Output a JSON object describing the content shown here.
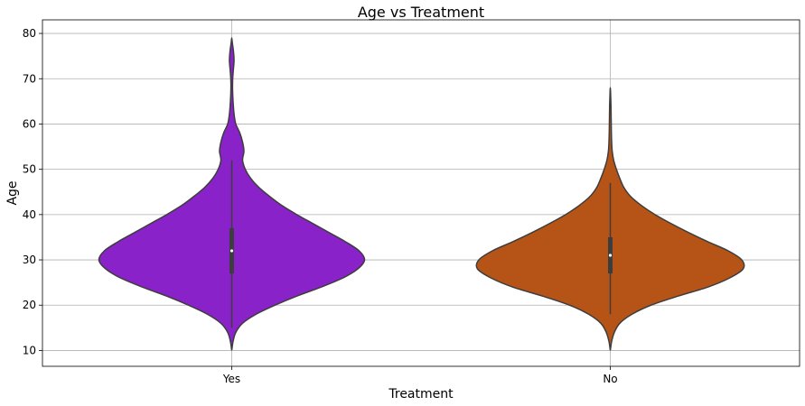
{
  "chart_data": {
    "type": "violin",
    "title": "Age vs Treatment",
    "xlabel": "Treatment",
    "ylabel": "Age",
    "categories": [
      "Yes",
      "No"
    ],
    "ylim": [
      6.5,
      83
    ],
    "yticks": [
      10,
      20,
      30,
      40,
      50,
      60,
      70,
      80
    ],
    "grid": true,
    "colors": [
      "#8a22c9",
      "#b65418"
    ],
    "box_color": "#3d3d3d",
    "violins": [
      {
        "category": "Yes",
        "min": 10,
        "max": 79,
        "q1": 27,
        "median": 32,
        "q3": 37,
        "whisker_low": 15,
        "whisker_high": 52,
        "profile": [
          [
            10,
            0.0
          ],
          [
            12,
            0.01
          ],
          [
            14,
            0.03
          ],
          [
            16,
            0.08
          ],
          [
            18,
            0.18
          ],
          [
            20,
            0.32
          ],
          [
            22,
            0.48
          ],
          [
            24,
            0.66
          ],
          [
            26,
            0.82
          ],
          [
            28,
            0.93
          ],
          [
            30,
            0.98
          ],
          [
            32,
            0.94
          ],
          [
            34,
            0.84
          ],
          [
            36,
            0.72
          ],
          [
            38,
            0.6
          ],
          [
            40,
            0.48
          ],
          [
            42,
            0.37
          ],
          [
            44,
            0.28
          ],
          [
            46,
            0.2
          ],
          [
            48,
            0.14
          ],
          [
            50,
            0.1
          ],
          [
            52,
            0.08
          ],
          [
            54,
            0.09
          ],
          [
            56,
            0.08
          ],
          [
            58,
            0.06
          ],
          [
            60,
            0.03
          ],
          [
            62,
            0.018
          ],
          [
            64,
            0.012
          ],
          [
            66,
            0.008
          ],
          [
            68,
            0.006
          ],
          [
            70,
            0.007
          ],
          [
            72,
            0.012
          ],
          [
            74,
            0.017
          ],
          [
            76,
            0.013
          ],
          [
            78,
            0.004
          ],
          [
            79,
            0.0
          ]
        ]
      },
      {
        "category": "No",
        "min": 10,
        "max": 68,
        "q1": 27,
        "median": 31,
        "q3": 35,
        "whisker_low": 18,
        "whisker_high": 47,
        "profile": [
          [
            10,
            0.0
          ],
          [
            12,
            0.01
          ],
          [
            14,
            0.03
          ],
          [
            16,
            0.07
          ],
          [
            18,
            0.16
          ],
          [
            20,
            0.3
          ],
          [
            22,
            0.5
          ],
          [
            24,
            0.72
          ],
          [
            26,
            0.88
          ],
          [
            28,
            0.98
          ],
          [
            30,
            0.97
          ],
          [
            32,
            0.87
          ],
          [
            34,
            0.72
          ],
          [
            36,
            0.58
          ],
          [
            38,
            0.45
          ],
          [
            40,
            0.33
          ],
          [
            42,
            0.23
          ],
          [
            44,
            0.15
          ],
          [
            46,
            0.1
          ],
          [
            48,
            0.07
          ],
          [
            50,
            0.045
          ],
          [
            52,
            0.025
          ],
          [
            54,
            0.014
          ],
          [
            56,
            0.01
          ],
          [
            58,
            0.008
          ],
          [
            60,
            0.007
          ],
          [
            62,
            0.006
          ],
          [
            64,
            0.005
          ],
          [
            66,
            0.003
          ],
          [
            68,
            0.0
          ]
        ]
      }
    ]
  }
}
